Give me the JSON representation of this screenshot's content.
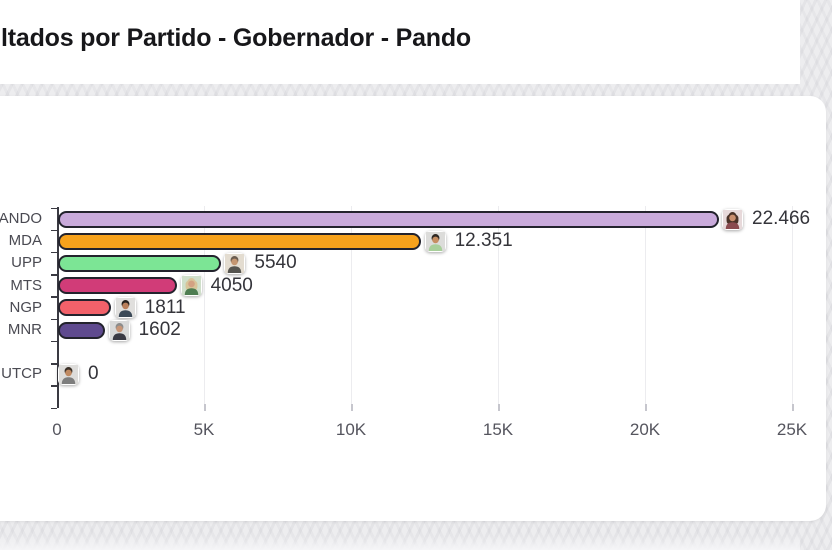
{
  "header": {
    "title": "ltados por Partido - Gobernador - Pando"
  },
  "chart_data": {
    "type": "bar",
    "orientation": "horizontal",
    "title": "ltados por Partido - Gobernador - Pando",
    "xlabel": "",
    "ylabel": "",
    "legend": "none",
    "grid": "vertical gridlines",
    "x_axis": {
      "tick_labels": [
        "0",
        "5K",
        "10K",
        "15K",
        "20K",
        "25K"
      ],
      "tick_values": [
        0,
        5000,
        10000,
        15000,
        20000,
        25000
      ],
      "range": [
        0,
        25000
      ]
    },
    "bar_outline_color": "#23232d",
    "bars": [
      {
        "party": "ANDO",
        "value": 22466,
        "value_label": "22.466",
        "row": 0,
        "bar_color": "#c9aadb",
        "avatar": {
          "desc": "woman-dark-hair",
          "bg": "#e7d9da",
          "hair": "#4a3228",
          "skin": "#c98e6e",
          "shirt": "#8a4a4f",
          "hair_long": true
        }
      },
      {
        "party": "MDA",
        "value": 12351,
        "value_label": "12.351",
        "row": 1,
        "bar_color": "#f7a21c",
        "avatar": {
          "desc": "man-light-green-shirt",
          "bg": "#dcdcda",
          "hair": "#2e2823",
          "skin": "#c68e62",
          "shirt": "#a8cf9a",
          "hair_long": false
        }
      },
      {
        "party": "UPP",
        "value": 5540,
        "value_label": "5540",
        "row": 2,
        "bar_color": "#7ce595",
        "avatar": {
          "desc": "man-gray-brown-hair",
          "bg": "#e3dcd0",
          "hair": "#6b5d4f",
          "skin": "#c49671",
          "shirt": "#55544f",
          "hair_long": false
        }
      },
      {
        "party": "MTS",
        "value": 4050,
        "value_label": "4050",
        "row": 3,
        "bar_color": "#d13c78",
        "avatar": {
          "desc": "woman-blonde-hair-green-shirt",
          "bg": "#cfdfca",
          "hair": "#d8c49a",
          "skin": "#d3a183",
          "shirt": "#4e7d52",
          "hair_long": true
        }
      },
      {
        "party": "NGP",
        "value": 1811,
        "value_label": "1811",
        "row": 4,
        "bar_color": "#f2616a",
        "avatar": {
          "desc": "man-dark-hair",
          "bg": "#e0dfdd",
          "hair": "#26211e",
          "skin": "#b97f5b",
          "shirt": "#3c4a58",
          "hair_long": false
        }
      },
      {
        "party": "MNR",
        "value": 1602,
        "value_label": "1602",
        "row": 5,
        "bar_color": "#5f4a8f",
        "avatar": {
          "desc": "man-gray-hair-dark-suit",
          "bg": "#d9d9d9",
          "hair": "#8c8c8c",
          "skin": "#c79577",
          "shirt": "#3a3a44",
          "hair_long": false
        }
      },
      {
        "party": "UTCP",
        "value": 0,
        "value_label": "0",
        "row": 7,
        "bar_color": "#cccccc",
        "avatar": {
          "desc": "man-gray-shirt",
          "bg": "#dddcda",
          "hair": "#3a3028",
          "skin": "#c08a62",
          "shirt": "#7d7d7d",
          "hair_long": false
        }
      }
    ]
  }
}
